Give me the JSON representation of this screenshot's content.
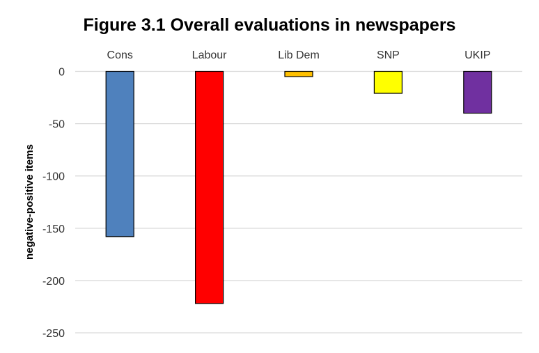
{
  "chart_data": {
    "type": "bar",
    "title": "Figure 3.1 Overall evaluations in newspapers",
    "xlabel": "",
    "ylabel": "negative-positive items",
    "categories": [
      "Cons",
      "Labour",
      "Lib Dem",
      "SNP",
      "UKIP"
    ],
    "values": [
      -158,
      -222,
      -5,
      -21,
      -40
    ],
    "colors": [
      "#4F81BD",
      "#FF0000",
      "#FFC000",
      "#FFFF00",
      "#7030A0"
    ],
    "ylim": [
      -250,
      0
    ],
    "yticks": [
      0,
      -50,
      -100,
      -150,
      -200,
      -250
    ],
    "grid": true,
    "legend": "none"
  }
}
